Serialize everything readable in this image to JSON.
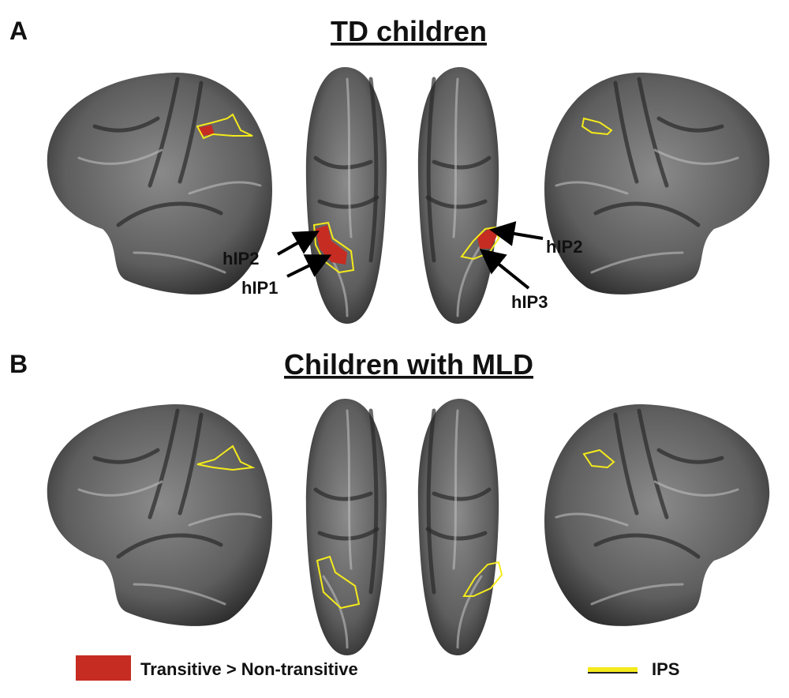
{
  "panels": [
    {
      "label": "A",
      "title": "TD children",
      "annotations": [
        "hIP2",
        "hIP1",
        "hIP2",
        "hIP3"
      ]
    },
    {
      "label": "B",
      "title": "Children with MLD"
    }
  ],
  "legend": {
    "items": [
      "Transitive > Non-transitive",
      "IPS"
    ]
  }
}
